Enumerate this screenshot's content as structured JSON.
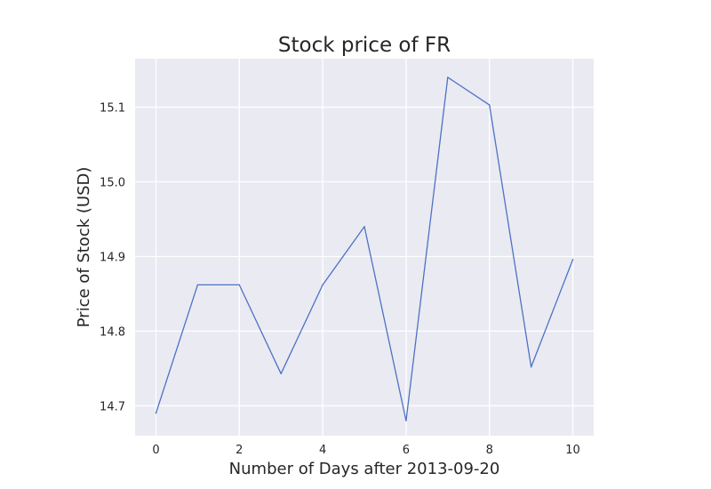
{
  "chart_data": {
    "type": "line",
    "title": "Stock price of FR",
    "xlabel": "Number of Days after 2013-09-20",
    "ylabel": "Price of Stock (USD)",
    "xlim": [
      -0.5,
      10.5
    ],
    "ylim": [
      14.66,
      15.165
    ],
    "xticks": [
      0,
      2,
      4,
      6,
      8,
      10
    ],
    "yticks": [
      14.7,
      14.8,
      14.9,
      15.0,
      15.1
    ],
    "grid": true,
    "series": [
      {
        "x": [
          0,
          1,
          2,
          3,
          4,
          5,
          6,
          7,
          8,
          9,
          10
        ],
        "values": [
          14.69,
          14.862,
          14.862,
          14.743,
          14.862,
          14.94,
          14.68,
          15.14,
          15.103,
          14.752,
          14.896
        ],
        "color": "#4c72c4"
      }
    ],
    "colors": {
      "plot_bg": "#eaeaf2",
      "grid": "#ffffff",
      "text": "#262626",
      "line": "#4c72c4"
    }
  }
}
